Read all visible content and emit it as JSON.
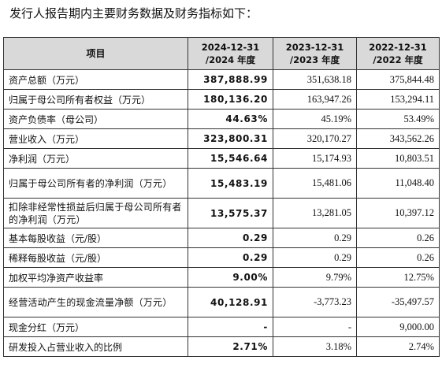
{
  "intro_text": "发行人报告期内主要财务数据及财务指标如下：",
  "table": {
    "headers": {
      "item": "项目",
      "col1_line1": "2024-12-31",
      "col1_line2": "/2024 年度",
      "col2_line1": "2023-12-31",
      "col2_line2": "/2023 年度",
      "col3_line1": "2022-12-31",
      "col3_line2": "/2022 年度"
    },
    "rows": [
      {
        "label": "资产总额（万元）",
        "v2024": "387,888.99",
        "v2023": "351,638.18",
        "v2022": "375,844.48"
      },
      {
        "label": "归属于母公司所有者权益（万元）",
        "v2024": "180,136.20",
        "v2023": "163,947.26",
        "v2022": "153,294.11"
      },
      {
        "label": "资产负债率（母公司）",
        "v2024": "44.63%",
        "v2023": "45.19%",
        "v2022": "53.49%"
      },
      {
        "label": "营业收入（万元）",
        "v2024": "323,800.31",
        "v2023": "320,170.27",
        "v2022": "343,562.26"
      },
      {
        "label": "净利润（万元）",
        "v2024": "15,546.64",
        "v2023": "15,174.93",
        "v2022": "10,803.51"
      },
      {
        "label": "归属于母公司所有者的净利润（万元）",
        "v2024": "15,483.19",
        "v2023": "15,481.06",
        "v2022": "11,048.40"
      },
      {
        "label": "扣除非经常性损益后归属于母公司所有者的净利润（万元）",
        "v2024": "13,575.37",
        "v2023": "13,281.05",
        "v2022": "10,397.12"
      },
      {
        "label": "基本每股收益（元/股）",
        "v2024": "0.29",
        "v2023": "0.29",
        "v2022": "0.26"
      },
      {
        "label": "稀释每股收益（元/股）",
        "v2024": "0.29",
        "v2023": "0.29",
        "v2022": "0.26"
      },
      {
        "label": "加权平均净资产收益率",
        "v2024": "9.00%",
        "v2023": "9.79%",
        "v2022": "12.75%"
      },
      {
        "label": "经营活动产生的现金流量净额（万元）",
        "v2024": "40,128.91",
        "v2023": "-3,773.23",
        "v2022": "-35,497.57"
      },
      {
        "label": "现金分红（万元）",
        "v2024": "-",
        "v2023": "-",
        "v2022": "9,000.00"
      },
      {
        "label": "研发投入占营业收入的比例",
        "v2024": "2.71%",
        "v2023": "3.18%",
        "v2022": "2.74%"
      }
    ]
  },
  "colors": {
    "header_background": "#d9d9d9",
    "border": "#333333",
    "text": "#111111"
  }
}
